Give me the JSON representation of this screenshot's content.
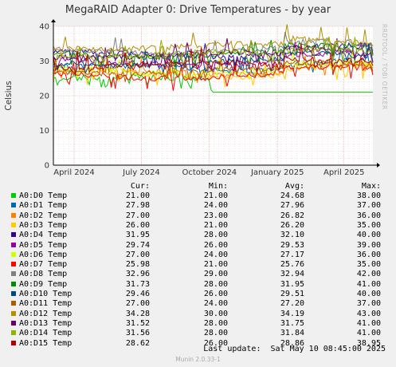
{
  "title": "MegaRAID Adapter 0: Drive Temperatures - by year",
  "watermark": "RRDTOOL / TOBI OETIKER",
  "footer": {
    "last_update": "Last update:  Sat May 10 08:45:00 2025",
    "munin_version": "Munin 2.0.33-1"
  },
  "legend_headers": {
    "cur": "Cur:",
    "min": "Min:",
    "avg": "Avg:",
    "max": "Max:"
  },
  "chart_data": {
    "type": "line",
    "title": "MegaRAID Adapter 0: Drive Temperatures - by year",
    "ylabel": "Celsius",
    "xlabel": "",
    "ylim": [
      0,
      40
    ],
    "yticks": [
      0,
      10,
      20,
      30,
      40
    ],
    "xticks": [
      {
        "label": "April 2024",
        "date": "2024-04-01"
      },
      {
        "label": "July 2024",
        "date": "2024-07-01"
      },
      {
        "label": "October 2024",
        "date": "2024-10-01"
      },
      {
        "label": "January 2025",
        "date": "2025-01-01"
      },
      {
        "label": "April 2025",
        "date": "2025-04-01"
      }
    ],
    "xrange": [
      "2024-03-04",
      "2025-05-10"
    ],
    "grid": true,
    "series": [
      {
        "name": "A0:D0 Temp",
        "color": "#00cc00",
        "cur": "21.00",
        "min": "21.00",
        "avg": "24.68",
        "max": "38.00"
      },
      {
        "name": "A0:D1 Temp",
        "color": "#0066b3",
        "cur": "27.98",
        "min": "24.00",
        "avg": "27.96",
        "max": "37.00"
      },
      {
        "name": "A0:D2 Temp",
        "color": "#ff8000",
        "cur": "27.00",
        "min": "23.00",
        "avg": "26.82",
        "max": "36.00"
      },
      {
        "name": "A0:D3 Temp",
        "color": "#ffcc00",
        "cur": "26.00",
        "min": "21.00",
        "avg": "26.20",
        "max": "35.00"
      },
      {
        "name": "A0:D4 Temp",
        "color": "#330099",
        "cur": "31.95",
        "min": "28.00",
        "avg": "32.10",
        "max": "40.00"
      },
      {
        "name": "A0:D5 Temp",
        "color": "#990099",
        "cur": "29.74",
        "min": "26.00",
        "avg": "29.53",
        "max": "39.00"
      },
      {
        "name": "A0:D6 Temp",
        "color": "#ccff00",
        "cur": "27.00",
        "min": "24.00",
        "avg": "27.17",
        "max": "36.00"
      },
      {
        "name": "A0:D7 Temp",
        "color": "#ff0000",
        "cur": "25.98",
        "min": "21.00",
        "avg": "25.76",
        "max": "35.00"
      },
      {
        "name": "A0:D8 Temp",
        "color": "#808080",
        "cur": "32.96",
        "min": "29.00",
        "avg": "32.94",
        "max": "42.00"
      },
      {
        "name": "A0:D9 Temp",
        "color": "#008f00",
        "cur": "31.73",
        "min": "28.00",
        "avg": "31.95",
        "max": "41.00"
      },
      {
        "name": "A0:D10 Temp",
        "color": "#00487d",
        "cur": "29.46",
        "min": "26.00",
        "avg": "29.51",
        "max": "40.00"
      },
      {
        "name": "A0:D11 Temp",
        "color": "#b35a00",
        "cur": "27.00",
        "min": "24.00",
        "avg": "27.20",
        "max": "37.00"
      },
      {
        "name": "A0:D12 Temp",
        "color": "#b38f00",
        "cur": "34.28",
        "min": "30.00",
        "avg": "34.19",
        "max": "43.00"
      },
      {
        "name": "A0:D13 Temp",
        "color": "#6b006b",
        "cur": "31.52",
        "min": "28.00",
        "avg": "31.75",
        "max": "41.00"
      },
      {
        "name": "A0:D14 Temp",
        "color": "#8fb300",
        "cur": "31.56",
        "min": "28.00",
        "avg": "31.84",
        "max": "41.00"
      },
      {
        "name": "A0:D15 Temp",
        "color": "#b30000",
        "cur": "28.62",
        "min": "26.00",
        "avg": "28.86",
        "max": "38.95"
      }
    ]
  }
}
